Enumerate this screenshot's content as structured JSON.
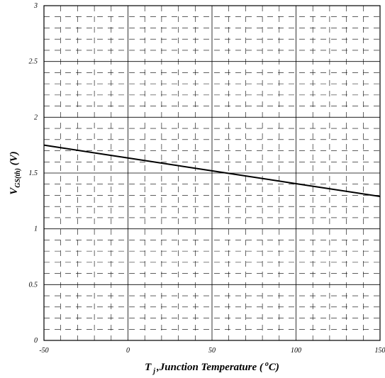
{
  "chart_data": {
    "type": "line",
    "title": "",
    "xlabel": {
      "main": "T",
      "sub": "j",
      "text": ",Junction Temperature (",
      "sup": "o",
      "end": "C)"
    },
    "ylabel": {
      "main": "V",
      "sub": "GS(th)",
      "end": " (V)"
    },
    "xlim": [
      -50,
      150
    ],
    "ylim": [
      0,
      3
    ],
    "x_ticks": [
      -50,
      0,
      50,
      100,
      150
    ],
    "y_ticks": [
      0,
      0.5,
      1,
      1.5,
      2,
      2.5,
      3
    ],
    "x_tick_labels": [
      "-50",
      "0",
      "50",
      "100",
      "150"
    ],
    "y_tick_labels": [
      "0",
      "0.5",
      "1",
      "1.5",
      "2",
      "2.5",
      "3"
    ],
    "x_minor_step": 10,
    "y_minor_step": 0.1,
    "grid": true,
    "series": [
      {
        "x": [
          -50,
          0,
          50,
          100,
          150
        ],
        "y": [
          1.75,
          1.635,
          1.52,
          1.405,
          1.29
        ]
      }
    ]
  }
}
